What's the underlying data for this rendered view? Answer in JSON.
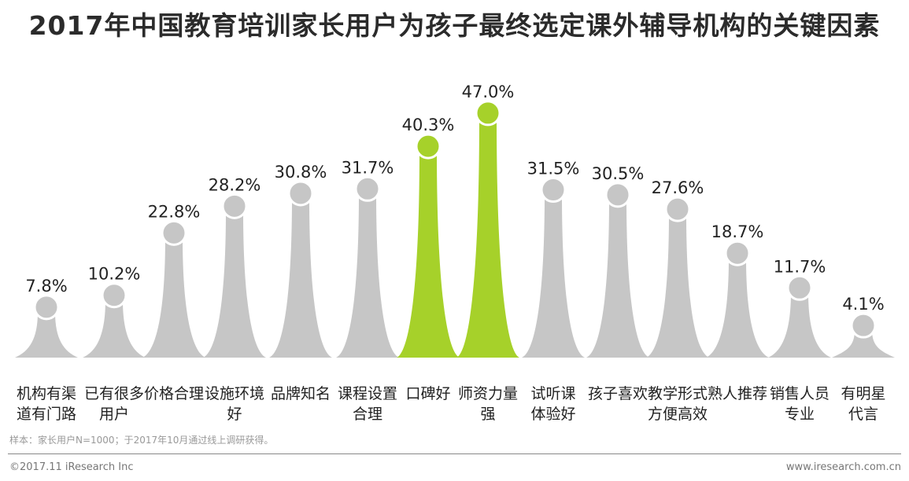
{
  "chart_data": {
    "type": "bar",
    "title": "2017年中国教育培训家长用户为孩子最终选定课外辅导机构的关键因素",
    "categories": [
      [
        "机构有渠",
        "道有门路"
      ],
      [
        "已有很多",
        "用户"
      ],
      [
        "价格合理",
        ""
      ],
      [
        "设施环境",
        "好"
      ],
      [
        "品牌知名",
        ""
      ],
      [
        "课程设置",
        "合理"
      ],
      [
        "口碑好",
        ""
      ],
      [
        "师资力量",
        "强"
      ],
      [
        "试听课",
        "体验好"
      ],
      [
        "孩子喜欢",
        ""
      ],
      [
        "教学形式",
        "方便高效"
      ],
      [
        "熟人推荐",
        ""
      ],
      [
        "销售人员",
        "专业"
      ],
      [
        "有明星",
        "代言"
      ]
    ],
    "values": [
      7.8,
      10.2,
      22.8,
      28.2,
      30.8,
      31.7,
      40.3,
      47.0,
      31.5,
      30.5,
      27.6,
      18.7,
      11.7,
      4.1
    ],
    "value_labels": [
      "7.8%",
      "10.2%",
      "22.8%",
      "28.2%",
      "30.8%",
      "31.7%",
      "40.3%",
      "47.0%",
      "31.5%",
      "30.5%",
      "27.6%",
      "18.7%",
      "11.7%",
      "4.1%"
    ],
    "highlight": [
      6,
      7
    ],
    "colors": {
      "default": "#c6c6c6",
      "highlight": "#a6d12a"
    },
    "ylabel": "",
    "xlabel": "",
    "ylim": [
      0,
      50
    ]
  },
  "note": "样本：家长用户N=1000；于2017年10月通过线上调研获得。",
  "copyright": "©2017.11 iResearch Inc",
  "website": "www.iresearch.com.cn"
}
